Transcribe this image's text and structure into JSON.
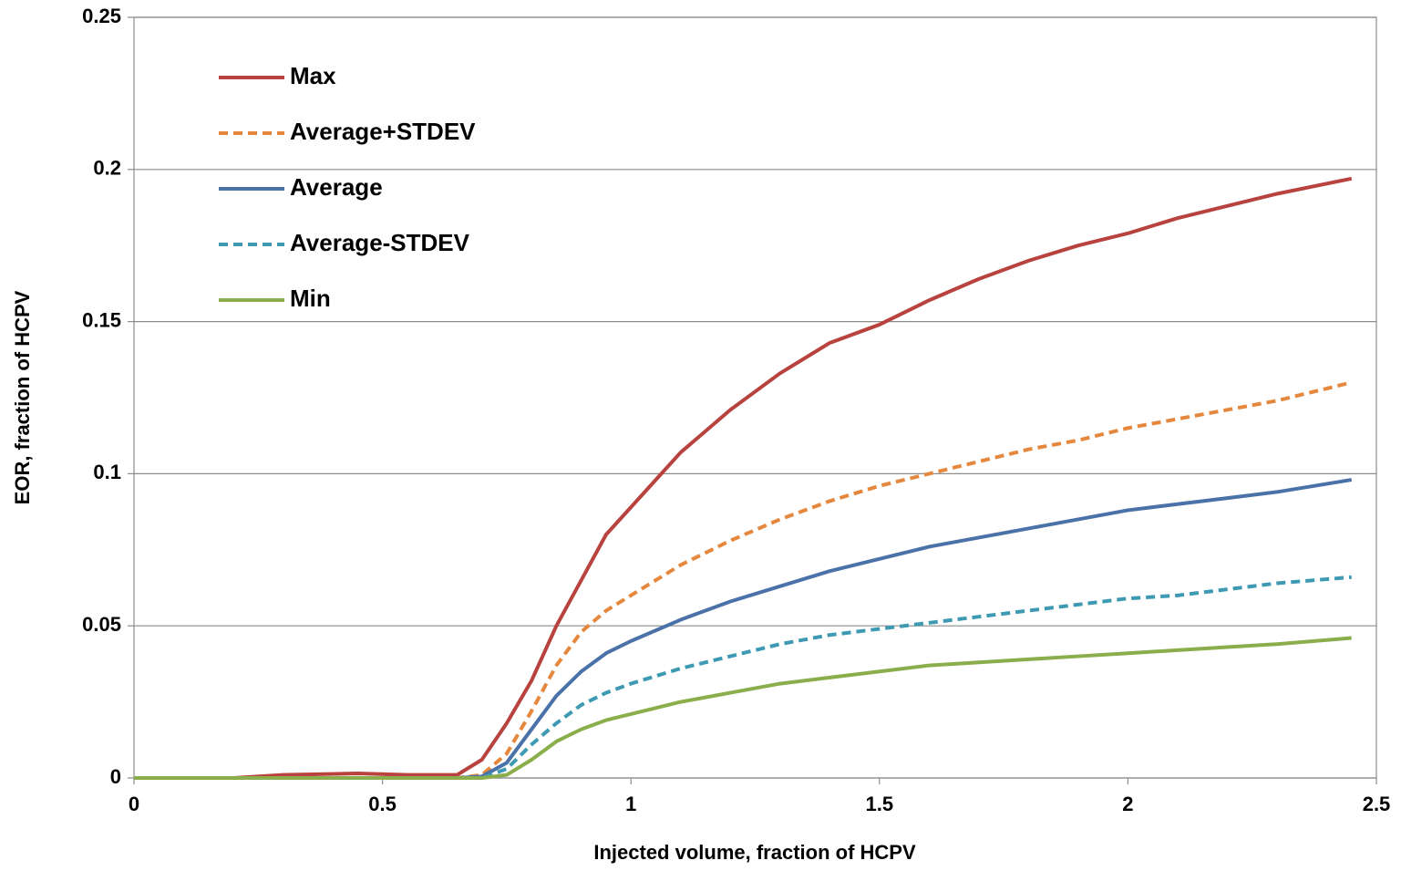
{
  "chart_data": {
    "type": "line",
    "xlabel": "Injected volume, fraction of HCPV",
    "ylabel": "EOR, fraction of HCPV",
    "x": [
      0,
      0.2,
      0.3,
      0.45,
      0.55,
      0.65,
      0.7,
      0.75,
      0.8,
      0.85,
      0.9,
      0.95,
      1,
      1.1,
      1.2,
      1.3,
      1.4,
      1.5,
      1.6,
      1.7,
      1.8,
      1.9,
      2,
      2.1,
      2.2,
      2.3,
      2.45
    ],
    "series": [
      {
        "name": "Max",
        "color": "#b8423e",
        "dashed": false,
        "values": [
          0,
          0,
          0.001,
          0.0015,
          0.001,
          0.001,
          0.006,
          0.018,
          0.032,
          0.05,
          0.065,
          0.08,
          0.089,
          0.107,
          0.121,
          0.133,
          0.143,
          0.149,
          0.157,
          0.164,
          0.17,
          0.175,
          0.179,
          0.184,
          0.188,
          0.192,
          0.197
        ]
      },
      {
        "name": "Average+STDEV",
        "color": "#e5883d",
        "dashed": true,
        "values": [
          0,
          0,
          0,
          0,
          0,
          0,
          0.001,
          0.008,
          0.022,
          0.037,
          0.048,
          0.055,
          0.06,
          0.07,
          0.078,
          0.085,
          0.091,
          0.096,
          0.1,
          0.104,
          0.108,
          0.111,
          0.115,
          0.118,
          0.121,
          0.124,
          0.13
        ]
      },
      {
        "name": "Average",
        "color": "#4a72a8",
        "dashed": false,
        "values": [
          0,
          0,
          0,
          0,
          0,
          0,
          0.0005,
          0.005,
          0.016,
          0.027,
          0.035,
          0.041,
          0.045,
          0.052,
          0.058,
          0.063,
          0.068,
          0.072,
          0.076,
          0.079,
          0.082,
          0.085,
          0.088,
          0.09,
          0.092,
          0.094,
          0.098
        ]
      },
      {
        "name": "Average-STDEV",
        "color": "#3d9ab2",
        "dashed": true,
        "values": [
          0,
          0,
          0,
          0,
          0,
          0,
          0,
          0.003,
          0.011,
          0.018,
          0.024,
          0.028,
          0.031,
          0.036,
          0.04,
          0.044,
          0.047,
          0.049,
          0.051,
          0.053,
          0.055,
          0.057,
          0.059,
          0.06,
          0.062,
          0.064,
          0.066
        ]
      },
      {
        "name": "Min",
        "color": "#8aae4b",
        "dashed": false,
        "values": [
          0,
          0,
          0,
          0,
          0,
          0,
          0,
          0.001,
          0.006,
          0.012,
          0.016,
          0.019,
          0.021,
          0.025,
          0.028,
          0.031,
          0.033,
          0.035,
          0.037,
          0.038,
          0.039,
          0.04,
          0.041,
          0.042,
          0.043,
          0.044,
          0.046
        ]
      }
    ],
    "xlim": [
      0,
      2.5
    ],
    "xticks": [
      0,
      0.5,
      1,
      1.5,
      2,
      2.5
    ],
    "ylim": [
      0,
      0.25
    ],
    "yticks": [
      0,
      0.05,
      0.1,
      0.15,
      0.2,
      0.25
    ],
    "grid": true,
    "legend": "upper-left"
  }
}
